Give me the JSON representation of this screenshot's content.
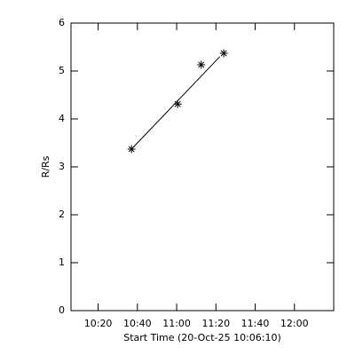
{
  "chart_data": {
    "type": "scatter",
    "xlabel": "Start Time (20-Oct-25 10:06:10)",
    "ylabel": "R/Rs",
    "x": [
      "10:37",
      "11:00:30",
      "11:12:30",
      "11:24"
    ],
    "values": [
      3.37,
      4.31,
      5.13,
      5.37
    ],
    "fit": {
      "x": [
        "10:37",
        "11:22"
      ],
      "values": [
        3.37,
        5.3
      ]
    },
    "color": "#000000",
    "xlim": [
      "10:06:10",
      "12:20"
    ],
    "xticks": [
      "10:20",
      "10:40",
      "11:00",
      "11:20",
      "11:40",
      "12:00"
    ],
    "ylim": [
      0,
      6
    ],
    "yticks": [
      0,
      1,
      2,
      3,
      4,
      5,
      6
    ]
  }
}
